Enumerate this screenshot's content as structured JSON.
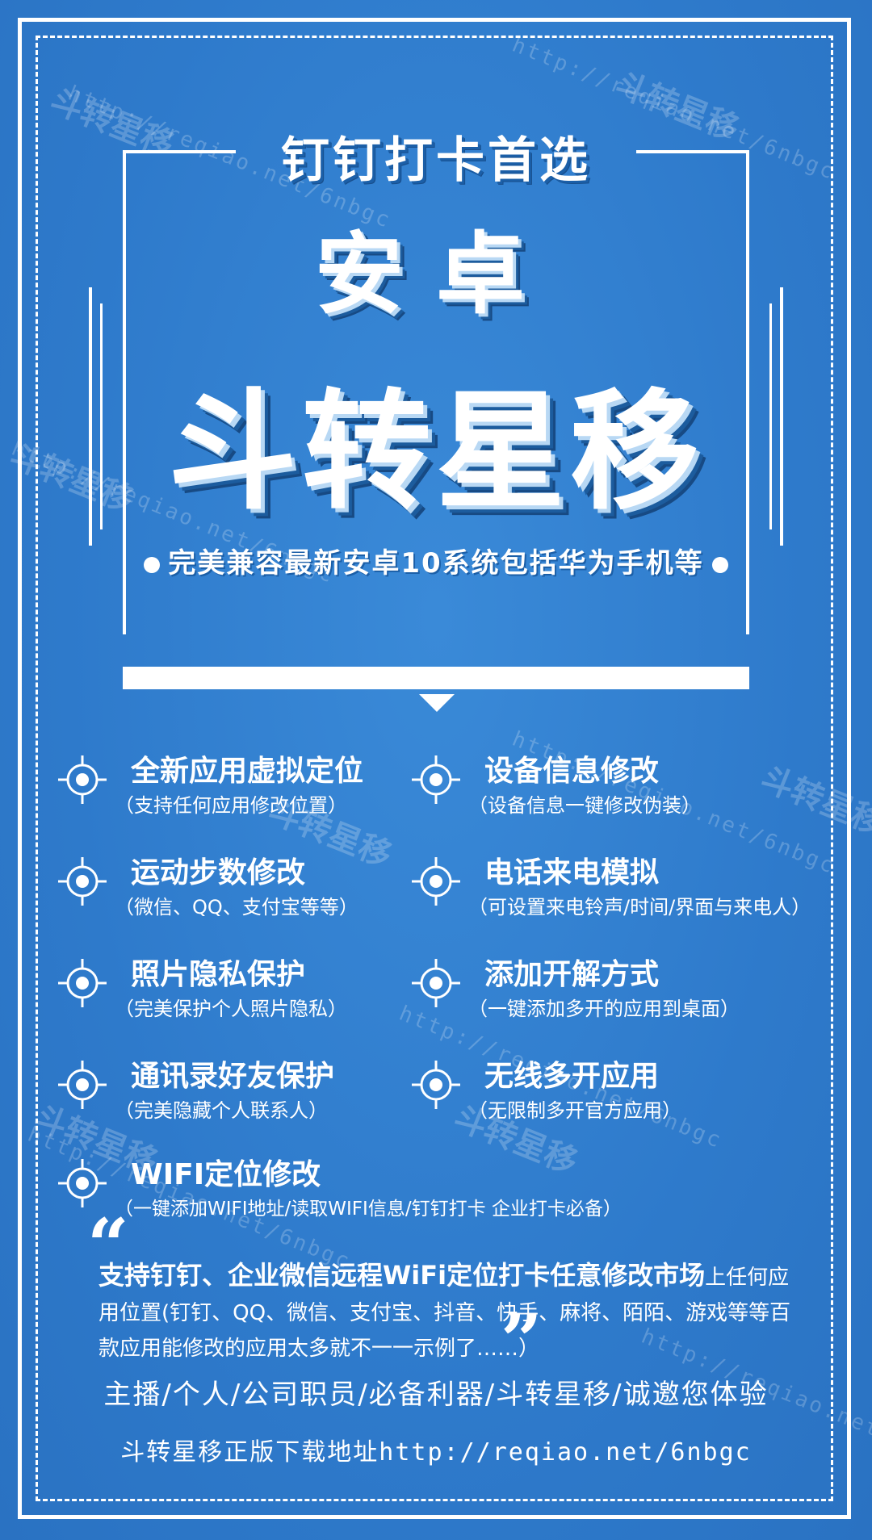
{
  "header": {
    "tagline": "钉钉打卡首选",
    "title_line1": "安卓",
    "title_line2": "斗转星移",
    "subtitle": "完美兼容最新安卓10系统包括华为手机等"
  },
  "features": [
    {
      "title": "全新应用虚拟定位",
      "desc": "（支持任何应用修改位置）"
    },
    {
      "title": "设备信息修改",
      "desc": "（设备信息一键修改伪装）"
    },
    {
      "title": "运动步数修改",
      "desc": "（微信、QQ、支付宝等等）"
    },
    {
      "title": "电话来电模拟",
      "desc": "（可设置来电铃声/时间/界面与来电人）"
    },
    {
      "title": "照片隐私保护",
      "desc": "（完美保护个人照片隐私）"
    },
    {
      "title": "添加开解方式",
      "desc": "（一键添加多开的应用到桌面）"
    },
    {
      "title": "通讯录好友保护",
      "desc": "（完美隐藏个人联系人）"
    },
    {
      "title": "无线多开应用",
      "desc": "（无限制多开官方应用）"
    },
    {
      "title": "WIFI定位修改",
      "desc": "（一键添加WIFI地址/读取WIFI信息/钉钉打卡 企业打卡必备）"
    }
  ],
  "quote": {
    "open_mark": "“",
    "close_mark": "”",
    "highlight": "支持钉钉、企业微信远程WiFi定位打卡任意修改市场",
    "rest": "上任何应用位置(钉钉、QQ、微信、支付宝、抖音、快手、麻将、陌陌、游戏等等百款应用能修改的应用太多就不一一示例了……）"
  },
  "footer": {
    "roles": "主播/个人/公司职员/必备利器/斗转星移/诚邀您体验",
    "download_label": "斗转星移正版下载地址",
    "download_url": "http://reqiao.net/6nbgc"
  },
  "watermark": {
    "url": "http://reqiao.net/6nbgc",
    "name": "斗转星移"
  },
  "colors": {
    "background": "#2f7fd0",
    "foreground": "#ffffff",
    "shadow": "#1c5c9e"
  },
  "icons": {
    "feature_bullet": "crosshair-target-icon",
    "subtitle_bullet": "dot-icon"
  }
}
